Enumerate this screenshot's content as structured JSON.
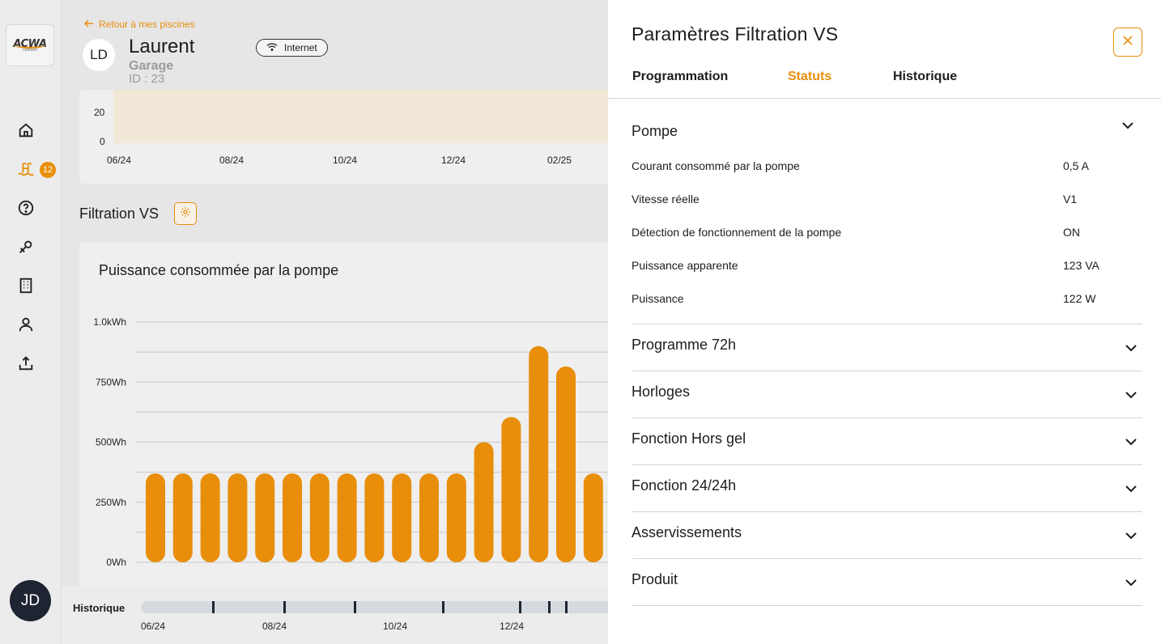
{
  "nav": {
    "logo_text": "ACWA",
    "logo_sub": "connect",
    "badge_count": "12",
    "user_initials": "JD",
    "items": [
      "home-icon",
      "pool-icon",
      "help-icon",
      "tools-icon",
      "building-icon",
      "user-icon",
      "upload-icon"
    ]
  },
  "header": {
    "back_label": "Retour à mes piscines",
    "avatar_initials": "LD",
    "name": "Laurent",
    "subtitle": "Garage",
    "id_label": "ID : 23",
    "connection": "Internet"
  },
  "top_chart": {
    "y_ticks": [
      "20",
      "0"
    ],
    "x_ticks": [
      "06/24",
      "08/24",
      "10/24",
      "12/24",
      "02/25"
    ]
  },
  "section": {
    "title": "Filtration VS"
  },
  "chart_data": {
    "type": "bar",
    "title": "Puissance consommée par la pompe",
    "y_ticks": [
      "1.0kWh",
      "750Wh",
      "500Wh",
      "250Wh",
      "0Wh"
    ],
    "ylim": [
      0,
      1000
    ],
    "values": [
      370,
      370,
      370,
      370,
      370,
      370,
      370,
      370,
      370,
      370,
      370,
      370,
      500,
      605,
      900,
      815,
      370
    ],
    "bar_color": "#e88e0b"
  },
  "timeline": {
    "label": "Historique",
    "x_ticks": [
      "06/24",
      "08/24",
      "10/24",
      "12/24"
    ]
  },
  "panel": {
    "title": "Paramètres Filtration VS",
    "tabs": [
      {
        "label": "Programmation",
        "active": false
      },
      {
        "label": "Statuts",
        "active": true
      },
      {
        "label": "Historique",
        "active": false
      }
    ],
    "pompe": {
      "title": "Pompe",
      "rows": [
        {
          "label": "Courant consommé par la pompe",
          "value": "0,5 A"
        },
        {
          "label": "Vitesse réelle",
          "value": "V1"
        },
        {
          "label": "Détection de fonctionnement de la pompe",
          "value": "ON"
        },
        {
          "label": "Puissance apparente",
          "value": "123 VA"
        },
        {
          "label": "Puissance",
          "value": "122 W"
        }
      ]
    },
    "sections": [
      "Programme 72h",
      "Horloges",
      "Fonction Hors gel",
      "Fonction 24/24h",
      "Asservissements",
      "Produit"
    ]
  }
}
